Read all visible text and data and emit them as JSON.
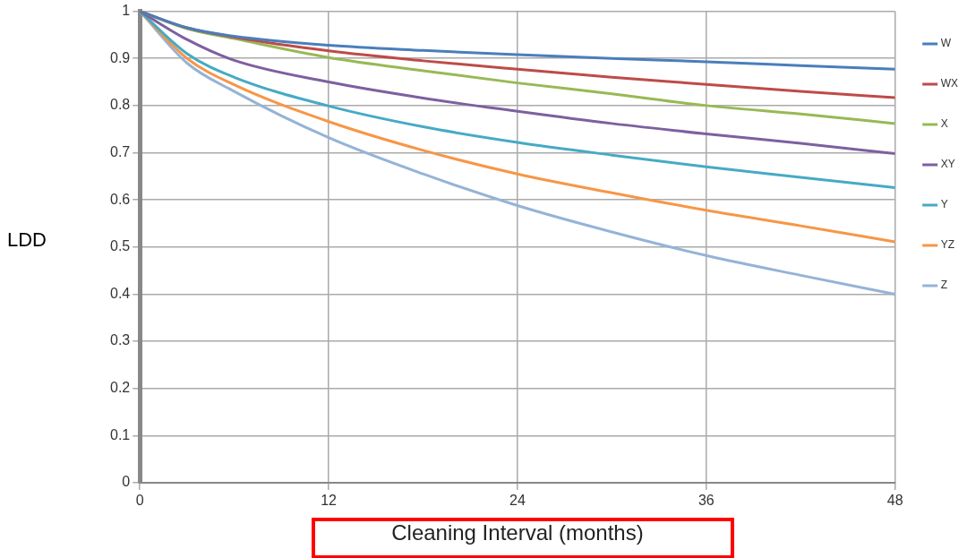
{
  "chart_data": {
    "type": "line",
    "xlabel": "Cleaning Interval (months)",
    "ylabel": "LDD",
    "x": [
      0,
      3,
      6,
      12,
      18,
      24,
      30,
      36,
      42,
      48
    ],
    "xlim": [
      0,
      48
    ],
    "xticks": [
      0,
      12,
      24,
      36,
      48
    ],
    "ylim": [
      0,
      1
    ],
    "yticks": [
      0,
      0.1,
      0.2,
      0.3,
      0.4,
      0.5,
      0.6,
      0.7,
      0.8,
      0.9,
      1
    ],
    "grid": true,
    "legend": "right",
    "marker": "none",
    "line_style": "solid",
    "series": [
      {
        "name": "W",
        "color": "#4a7ebb",
        "values": [
          1,
          0.965,
          0.947,
          0.928,
          0.917,
          0.908,
          0.9,
          0.893,
          0.885,
          0.877
        ]
      },
      {
        "name": "WX",
        "color": "#be4b48",
        "values": [
          1,
          0.965,
          0.945,
          0.916,
          0.895,
          0.877,
          0.86,
          0.845,
          0.83,
          0.817
        ]
      },
      {
        "name": "X",
        "color": "#98b954",
        "values": [
          1,
          0.963,
          0.942,
          0.902,
          0.874,
          0.848,
          0.825,
          0.8,
          0.782,
          0.762
        ]
      },
      {
        "name": "XY",
        "color": "#7d60a0",
        "values": [
          1,
          0.94,
          0.896,
          0.85,
          0.816,
          0.788,
          0.762,
          0.74,
          0.72,
          0.698
        ]
      },
      {
        "name": "Y",
        "color": "#46aac5",
        "values": [
          1,
          0.91,
          0.86,
          0.799,
          0.755,
          0.722,
          0.695,
          0.67,
          0.648,
          0.626
        ]
      },
      {
        "name": "YZ",
        "color": "#f79646",
        "values": [
          1,
          0.9,
          0.844,
          0.766,
          0.705,
          0.655,
          0.615,
          0.578,
          0.545,
          0.511
        ]
      },
      {
        "name": "Z",
        "color": "#95b3d7",
        "values": [
          1,
          0.89,
          0.83,
          0.732,
          0.655,
          0.588,
          0.532,
          0.482,
          0.44,
          0.4
        ]
      }
    ]
  }
}
